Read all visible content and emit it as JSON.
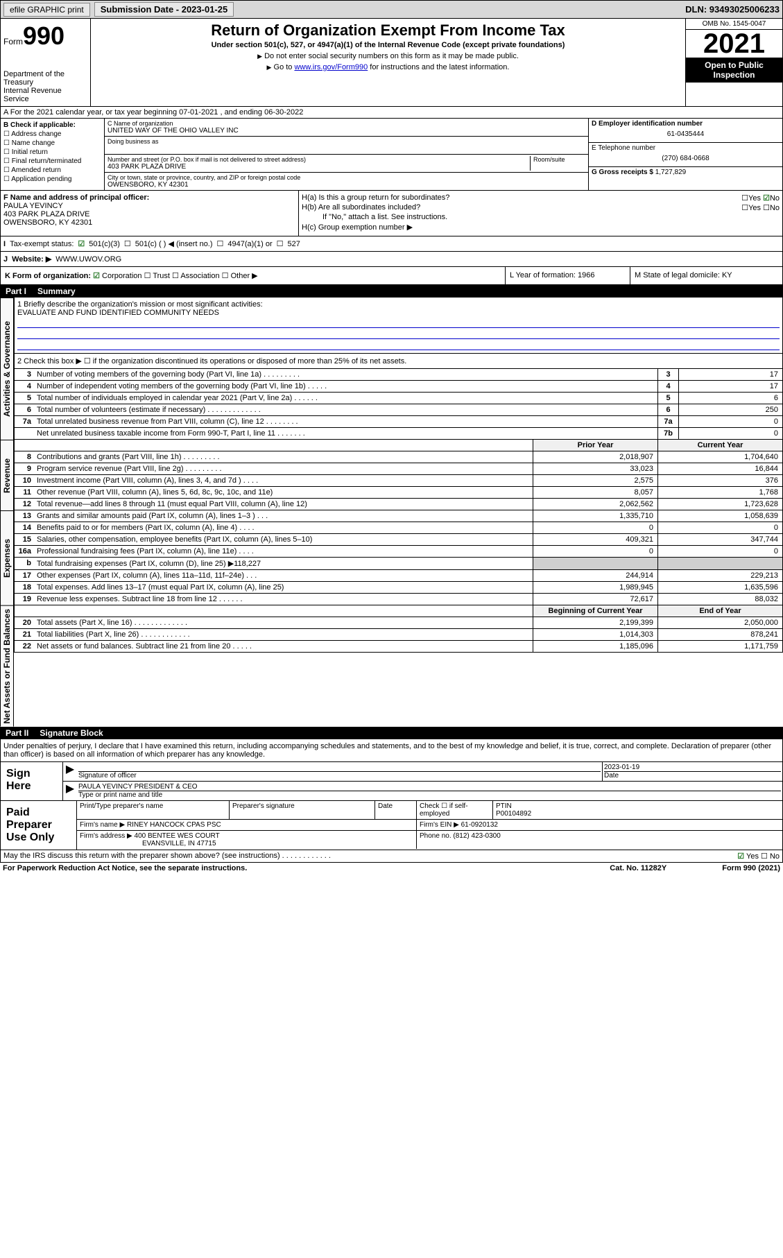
{
  "top": {
    "efile": "efile GRAPHIC print",
    "subdate_label": "Submission Date - 2023-01-25",
    "dln": "DLN: 93493025006233"
  },
  "header": {
    "form_prefix": "Form",
    "form_num": "990",
    "dept": "Department of the Treasury",
    "irs": "Internal Revenue Service",
    "title": "Return of Organization Exempt From Income Tax",
    "sub": "Under section 501(c), 527, or 4947(a)(1) of the Internal Revenue Code (except private foundations)",
    "note1": "Do not enter social security numbers on this form as it may be made public.",
    "note2_pre": "Go to ",
    "note2_link": "www.irs.gov/Form990",
    "note2_post": " for instructions and the latest information.",
    "omb": "OMB No. 1545-0047",
    "year": "2021",
    "inspect": "Open to Public Inspection"
  },
  "rowA": "A For the 2021 calendar year, or tax year beginning 07-01-2021  , and ending 06-30-2022",
  "colB": {
    "title": "B Check if applicable:",
    "items": [
      "Address change",
      "Name change",
      "Initial return",
      "Final return/terminated",
      "Amended return",
      "Application pending"
    ]
  },
  "colC": {
    "name_label": "C Name of organization",
    "name": "UNITED WAY OF THE OHIO VALLEY INC",
    "dba_label": "Doing business as",
    "addr_label": "Number and street (or P.O. box if mail is not delivered to street address)",
    "room_label": "Room/suite",
    "addr": "403 PARK PLAZA DRIVE",
    "city_label": "City or town, state or province, country, and ZIP or foreign postal code",
    "city": "OWENSBORO, KY  42301"
  },
  "colDE": {
    "d_label": "D Employer identification number",
    "ein": "61-0435444",
    "e_label": "E Telephone number",
    "phone": "(270) 684-0668",
    "g_label": "G Gross receipts $",
    "gross": "1,727,829"
  },
  "colF": {
    "label": "F Name and address of principal officer:",
    "name": "PAULA YEVINCY",
    "addr1": "403 PARK PLAZA DRIVE",
    "addr2": "OWENSBORO, KY  42301"
  },
  "colH": {
    "ha": "H(a)  Is this a group return for subordinates?",
    "hb": "H(b)  Are all subordinates included?",
    "hb_note": "If \"No,\" attach a list. See instructions.",
    "hc": "H(c)  Group exemption number ▶",
    "yes": "Yes",
    "no": "No"
  },
  "rowI": {
    "label": "Tax-exempt status:",
    "opt1": "501(c)(3)",
    "opt2": "501(c) (   ) ◀ (insert no.)",
    "opt3": "4947(a)(1) or",
    "opt4": "527"
  },
  "rowJ": {
    "label": "Website: ▶",
    "val": "WWW.UWOV.ORG"
  },
  "rowK": {
    "label": "K Form of organization:",
    "opts": [
      "Corporation",
      "Trust",
      "Association",
      "Other ▶"
    ],
    "l": "L Year of formation: 1966",
    "m": "M State of legal domicile: KY"
  },
  "part1": {
    "num": "Part I",
    "title": "Summary"
  },
  "briefly": {
    "q": "1  Briefly describe the organization's mission or most significant activities:",
    "ans": "EVALUATE AND FUND IDENTIFIED COMMUNITY NEEDS"
  },
  "line2": "2   Check this box ▶ ☐  if the organization discontinued its operations or disposed of more than 25% of its net assets.",
  "gov_lines": [
    {
      "n": "3",
      "d": "Number of voting members of the governing body (Part VI, line 1a)  .   .   .   .   .   .   .   .   .",
      "b": "3",
      "v": "17"
    },
    {
      "n": "4",
      "d": "Number of independent voting members of the governing body (Part VI, line 1b)  .   .   .   .   .",
      "b": "4",
      "v": "17"
    },
    {
      "n": "5",
      "d": "Total number of individuals employed in calendar year 2021 (Part V, line 2a)  .   .   .   .   .   .",
      "b": "5",
      "v": "6"
    },
    {
      "n": "6",
      "d": "Total number of volunteers (estimate if necessary)  .   .   .   .   .   .   .   .   .   .   .   .   .",
      "b": "6",
      "v": "250"
    },
    {
      "n": "7a",
      "d": "Total unrelated business revenue from Part VIII, column (C), line 12  .   .   .   .   .   .   .   .",
      "b": "7a",
      "v": "0"
    },
    {
      "n": "",
      "d": "Net unrelated business taxable income from Form 990-T, Part I, line 11  .   .   .   .   .   .   .",
      "b": "7b",
      "v": "0"
    }
  ],
  "col_hdr": {
    "py": "Prior Year",
    "cy": "Current Year"
  },
  "rev_lines": [
    {
      "n": "8",
      "d": "Contributions and grants (Part VIII, line 1h)  .   .   .   .   .   .   .   .   .",
      "py": "2,018,907",
      "cy": "1,704,640"
    },
    {
      "n": "9",
      "d": "Program service revenue (Part VIII, line 2g)  .   .   .   .   .   .   .   .   .",
      "py": "33,023",
      "cy": "16,844"
    },
    {
      "n": "10",
      "d": "Investment income (Part VIII, column (A), lines 3, 4, and 7d )  .   .   .   .",
      "py": "2,575",
      "cy": "376"
    },
    {
      "n": "11",
      "d": "Other revenue (Part VIII, column (A), lines 5, 6d, 8c, 9c, 10c, and 11e)",
      "py": "8,057",
      "cy": "1,768"
    },
    {
      "n": "12",
      "d": "Total revenue—add lines 8 through 11 (must equal Part VIII, column (A), line 12)",
      "py": "2,062,562",
      "cy": "1,723,628"
    }
  ],
  "exp_lines": [
    {
      "n": "13",
      "d": "Grants and similar amounts paid (Part IX, column (A), lines 1–3 )  .   .   .",
      "py": "1,335,710",
      "cy": "1,058,639"
    },
    {
      "n": "14",
      "d": "Benefits paid to or for members (Part IX, column (A), line 4)  .   .   .   .",
      "py": "0",
      "cy": "0"
    },
    {
      "n": "15",
      "d": "Salaries, other compensation, employee benefits (Part IX, column (A), lines 5–10)",
      "py": "409,321",
      "cy": "347,744"
    },
    {
      "n": "16a",
      "d": "Professional fundraising fees (Part IX, column (A), line 11e)  .   .   .   .",
      "py": "0",
      "cy": "0"
    },
    {
      "n": "b",
      "d": "Total fundraising expenses (Part IX, column (D), line 25) ▶118,227",
      "py": "",
      "cy": "",
      "shaded": true
    },
    {
      "n": "17",
      "d": "Other expenses (Part IX, column (A), lines 11a–11d, 11f–24e)  .   .   .",
      "py": "244,914",
      "cy": "229,213"
    },
    {
      "n": "18",
      "d": "Total expenses. Add lines 13–17 (must equal Part IX, column (A), line 25)",
      "py": "1,989,945",
      "cy": "1,635,596"
    },
    {
      "n": "19",
      "d": "Revenue less expenses. Subtract line 18 from line 12  .   .   .   .   .   .",
      "py": "72,617",
      "cy": "88,032"
    }
  ],
  "na_hdr": {
    "py": "Beginning of Current Year",
    "cy": "End of Year"
  },
  "na_lines": [
    {
      "n": "20",
      "d": "Total assets (Part X, line 16)  .   .   .   .   .   .   .   .   .   .   .   .   .",
      "py": "2,199,399",
      "cy": "2,050,000"
    },
    {
      "n": "21",
      "d": "Total liabilities (Part X, line 26)  .   .   .   .   .   .   .   .   .   .   .   .",
      "py": "1,014,303",
      "cy": "878,241"
    },
    {
      "n": "22",
      "d": "Net assets or fund balances. Subtract line 21 from line 20  .   .   .   .   .",
      "py": "1,185,096",
      "cy": "1,171,759"
    }
  ],
  "part2": {
    "num": "Part II",
    "title": "Signature Block"
  },
  "sig_decl": "Under penalties of perjury, I declare that I have examined this return, including accompanying schedules and statements, and to the best of my knowledge and belief, it is true, correct, and complete. Declaration of preparer (other than officer) is based on all information of which preparer has any knowledge.",
  "sign": {
    "here": "Sign Here",
    "sig_label": "Signature of officer",
    "date": "2023-01-19",
    "date_label": "Date",
    "name": "PAULA YEVINCY PRESIDENT & CEO",
    "name_label": "Type or print name and title"
  },
  "paid": {
    "title": "Paid Preparer Use Only",
    "h1": "Print/Type preparer's name",
    "h2": "Preparer's signature",
    "h3": "Date",
    "h4_pre": "Check ☐ if self-employed",
    "h5": "PTIN",
    "ptin": "P00104892",
    "firm_label": "Firm's name   ▶",
    "firm": "RINEY HANCOCK CPAS PSC",
    "ein_label": "Firm's EIN ▶",
    "ein": "61-0920132",
    "addr_label": "Firm's address ▶",
    "addr1": "400 BENTEE WES COURT",
    "addr2": "EVANSVILLE, IN  47715",
    "phone_label": "Phone no.",
    "phone": "(812) 423-0300"
  },
  "discuss": "May the IRS discuss this return with the preparer shown above? (see instructions)  .   .   .   .   .   .   .   .   .   .   .   .",
  "footer": {
    "pra": "For Paperwork Reduction Act Notice, see the separate instructions.",
    "cat": "Cat. No. 11282Y",
    "form": "Form 990 (2021)"
  },
  "vlabels": {
    "gov": "Activities & Governance",
    "rev": "Revenue",
    "exp": "Expenses",
    "na": "Net Assets or Fund Balances"
  }
}
